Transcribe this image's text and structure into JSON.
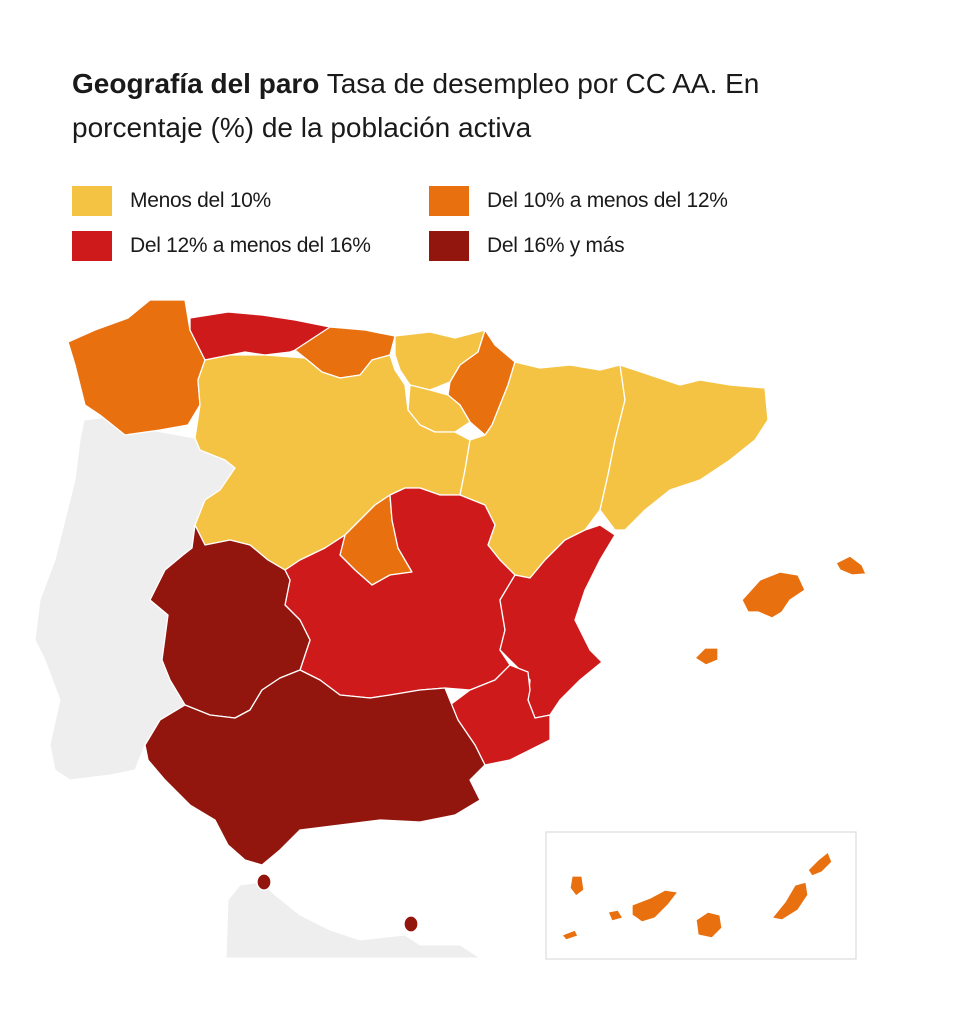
{
  "title": {
    "bold": "Geografía del paro",
    "text": "Tasa de desempleo por CC AA. En porcentaje (%) de la población activa"
  },
  "colors": {
    "menos_10": "#F5C343",
    "de_10_a_12": "#E9700F",
    "de_12_a_16": "#CF1A1B",
    "mas_16": "#93160E",
    "neighbor": "#EEEEEE",
    "border": "#FFFFFF",
    "inset_frame": "#DDDDDD"
  },
  "legend": [
    {
      "label": "Menos del 10%",
      "color": "#F5C343"
    },
    {
      "label": "Del 10% a menos del 12%",
      "color": "#E9700F"
    },
    {
      "label": "Del 12% a menos del 16%",
      "color": "#CF1A1B"
    },
    {
      "label": "Del 16% y más",
      "color": "#93160E"
    }
  ],
  "regions": [
    {
      "name": "Galicia",
      "class": "Del 10% a menos del 12%"
    },
    {
      "name": "Asturias",
      "class": "Del 12% a menos del 16%"
    },
    {
      "name": "Cantabria",
      "class": "Del 10% a menos del 12%"
    },
    {
      "name": "País Vasco",
      "class": "Menos del 10%"
    },
    {
      "name": "Navarra",
      "class": "Del 10% a menos del 12%"
    },
    {
      "name": "La Rioja",
      "class": "Menos del 10%"
    },
    {
      "name": "Aragón",
      "class": "Menos del 10%"
    },
    {
      "name": "Cataluña",
      "class": "Menos del 10%"
    },
    {
      "name": "Castilla y León",
      "class": "Menos del 10%"
    },
    {
      "name": "Madrid",
      "class": "Del 10% a menos del 12%"
    },
    {
      "name": "Castilla-La Mancha",
      "class": "Del 12% a menos del 16%"
    },
    {
      "name": "Comunidad Valenciana",
      "class": "Del 12% a menos del 16%"
    },
    {
      "name": "Murcia",
      "class": "Del 12% a menos del 16%"
    },
    {
      "name": "Extremadura",
      "class": "Del 16% y más"
    },
    {
      "name": "Andalucía",
      "class": "Del 16% y más"
    },
    {
      "name": "Islas Baleares",
      "class": "Del 10% a menos del 12%"
    },
    {
      "name": "Canarias",
      "class": "Del 10% a menos del 12%"
    },
    {
      "name": "Ceuta",
      "class": "Del 16% y más"
    },
    {
      "name": "Melilla",
      "class": "Del 16% y más"
    }
  ]
}
